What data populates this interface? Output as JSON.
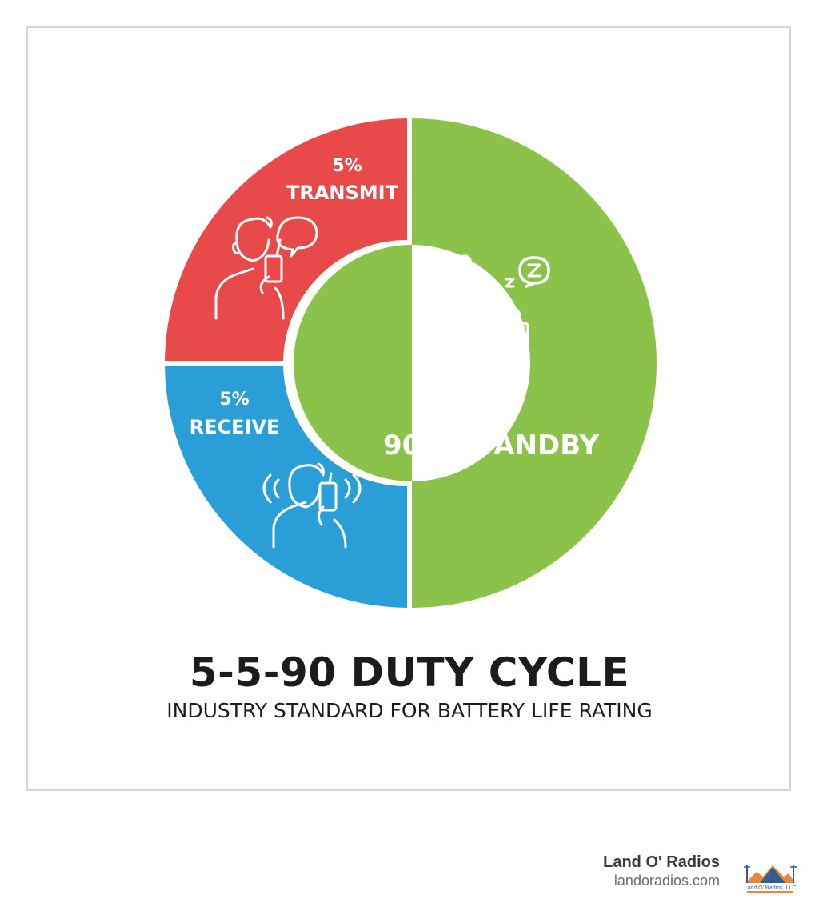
{
  "chart_data": {
    "type": "pie",
    "title": "5-5-90 DUTY CYCLE",
    "subtitle": "INDUSTRY STANDARD FOR BATTERY LIFE RATING",
    "slices": [
      {
        "label": "TRANSMIT",
        "percent_text": "5%",
        "value": 5,
        "color": "#e84a4a",
        "icon": "person-talking-radio-icon"
      },
      {
        "label": "RECEIVE",
        "percent_text": "5%",
        "value": 5,
        "color": "#2a9ed6",
        "icon": "person-listening-radio-icon"
      },
      {
        "label": "90% STANDBY",
        "value": 90,
        "color": "#8bc34a",
        "icon": "sleeping-radio-icon"
      }
    ]
  },
  "footer": {
    "brand_name": "Land O' Radios",
    "brand_url": "landoradios.com",
    "logo_text": "Land O' Radios, LLC",
    "logo_icon": "radio-tower-mountain-logo"
  }
}
